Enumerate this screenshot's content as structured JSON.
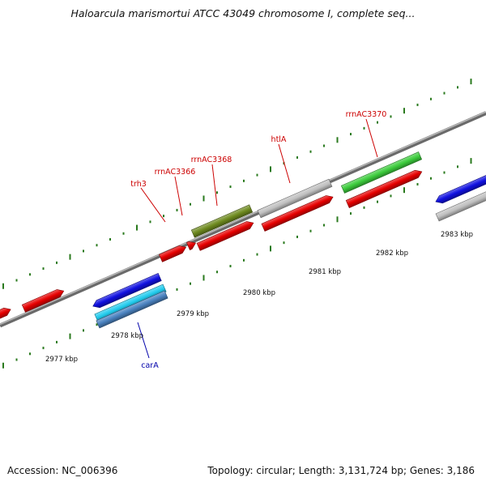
{
  "title": "Haloarcula marismortui ATCC 43049 chromosome I, complete seq...",
  "footer": {
    "accession": "Accession: NC_006396",
    "summary": "Topology: circular; Length: 3,131,724 bp; Genes: 3,186"
  },
  "colors": {
    "backbone": "#888888",
    "ticks": "#2a7a1e",
    "forward_gene": "#e60000",
    "gray_gene": "#c0c0c0",
    "olive_gene": "#6e8a1f",
    "green_gene": "#3ccc3c",
    "blue_gene": "#1010e0",
    "cyan_gene": "#22ccee",
    "steel_gene": "#4a82c0",
    "label_red": "#cc0000",
    "label_blue": "#0000aa"
  },
  "kbp_labels": [
    "2977 kbp",
    "2978 kbp",
    "2979 kbp",
    "2980 kbp",
    "2981 kbp",
    "2982 kbp",
    "2983 kbp"
  ],
  "gene_labels": [
    {
      "id": "trh3",
      "text": "trh3",
      "color": "label_red"
    },
    {
      "id": "rrnAC3366",
      "text": "rrnAC3366",
      "color": "label_red"
    },
    {
      "id": "rrnAC3368",
      "text": "rrnAC3368",
      "color": "label_red"
    },
    {
      "id": "htlA",
      "text": "htlA",
      "color": "label_red"
    },
    {
      "id": "rrnAC3370",
      "text": "rrnAC3370",
      "color": "label_red"
    },
    {
      "id": "carA",
      "text": "carA",
      "color": "label_blue"
    }
  ]
}
